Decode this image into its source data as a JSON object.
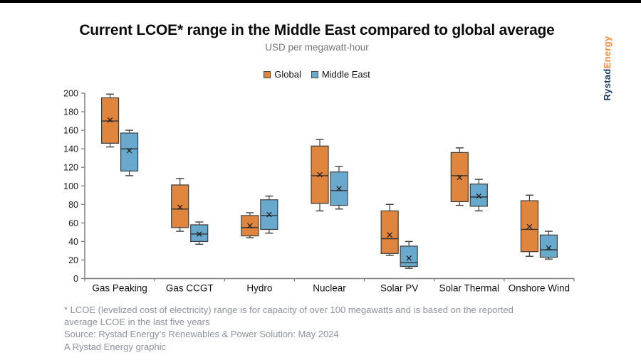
{
  "brand": {
    "part1": "Rystad",
    "part2": "Energy"
  },
  "footnotes": {
    "lines": [
      "* LCOE (levelized cost of electricity) range is for capacity of over 100 megawatts and is based on the reported",
      "average LCOE in the last five years",
      "Source: Rystad Energy’s Renewables & Power Solution: May 2024",
      "A Rystad Energy graphic"
    ]
  },
  "chart_data": {
    "type": "boxplot",
    "title": "Current LCOE* range in the Middle East compared to global average",
    "subtitle": "USD per megawatt-hour",
    "ylabel": "USD per megawatt-hour",
    "ylim": [
      0,
      200
    ],
    "ytick_step": 20,
    "grid": false,
    "legend_position": "top-center",
    "categories": [
      "Gas Peaking",
      "Gas CCGT",
      "Hydro",
      "Nuclear",
      "Solar PV",
      "Solar Thermal",
      "Onshore Wind"
    ],
    "series": [
      {
        "name": "Global",
        "color": "#E0853E",
        "data": [
          {
            "min": 142,
            "q1": 146,
            "median": 170,
            "mean": 171,
            "q3": 195,
            "max": 199
          },
          {
            "min": 51,
            "q1": 55,
            "median": 75,
            "mean": 77,
            "q3": 101,
            "max": 108
          },
          {
            "min": 44,
            "q1": 46,
            "median": 55,
            "mean": 57,
            "q3": 68,
            "max": 71
          },
          {
            "min": 73,
            "q1": 81,
            "median": 111,
            "mean": 112,
            "q3": 143,
            "max": 150
          },
          {
            "min": 25,
            "q1": 27,
            "median": 43,
            "mean": 47,
            "q3": 73,
            "max": 80
          },
          {
            "min": 79,
            "q1": 83,
            "median": 111,
            "mean": 109,
            "q3": 136,
            "max": 141
          },
          {
            "min": 24,
            "q1": 29,
            "median": 53,
            "mean": 56,
            "q3": 84,
            "max": 90
          }
        ]
      },
      {
        "name": "Middle East",
        "color": "#68A9CD",
        "data": [
          {
            "min": 111,
            "q1": 116,
            "median": 140,
            "mean": 138,
            "q3": 157,
            "max": 160
          },
          {
            "min": 37,
            "q1": 40,
            "median": 48,
            "mean": 48,
            "q3": 58,
            "max": 61
          },
          {
            "min": 49,
            "q1": 53,
            "median": 68,
            "mean": 69,
            "q3": 85,
            "max": 89
          },
          {
            "min": 75,
            "q1": 79,
            "median": 95,
            "mean": 97,
            "q3": 115,
            "max": 121
          },
          {
            "min": 11,
            "q1": 13,
            "median": 17,
            "mean": 22,
            "q3": 35,
            "max": 40
          },
          {
            "min": 73,
            "q1": 78,
            "median": 88,
            "mean": 89,
            "q3": 102,
            "max": 107
          },
          {
            "min": 21,
            "q1": 23,
            "median": 31,
            "mean": 33,
            "q3": 47,
            "max": 51
          }
        ]
      }
    ],
    "colors": {
      "axis": "#7f7f7f",
      "box_border": "#3d3d3d",
      "tick_label": "#1a1a1a",
      "category_label": "#111111"
    }
  }
}
